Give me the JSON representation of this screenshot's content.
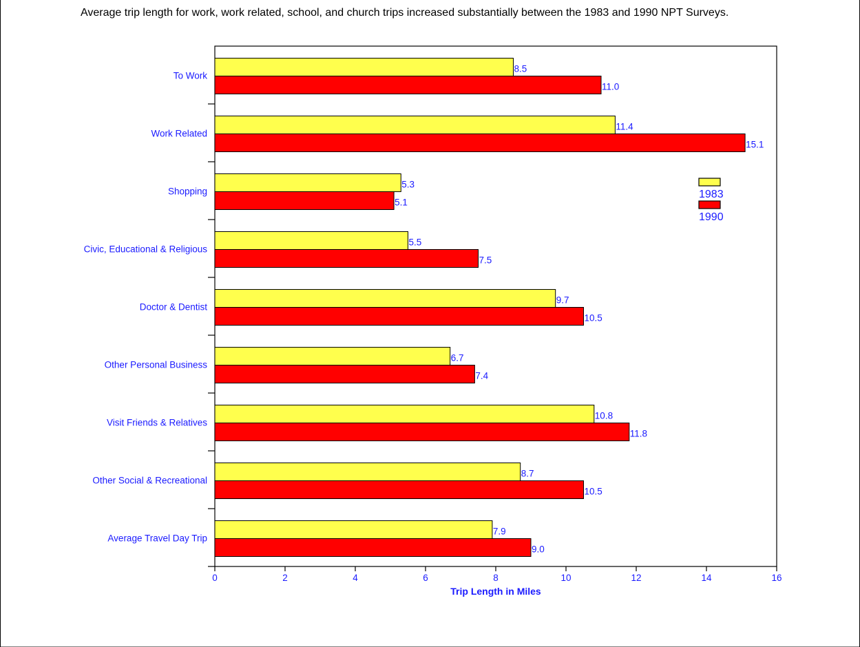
{
  "caption": "Average trip length for work, work related, school, and church trips increased substantially between the 1983 and 1990 NPT Surveys.",
  "colors": {
    "label_text": "#1a1aff",
    "bar_1983": "#ffff4d",
    "bar_1990": "#ff0000",
    "bar_stroke": "#000000",
    "axis": "#000000",
    "frame": "#000000"
  },
  "chart_data": {
    "type": "bar",
    "orientation": "horizontal",
    "categories": [
      "To Work",
      "Work Related",
      "Shopping",
      "Civic, Educational & Religious",
      "Doctor & Dentist",
      "Other Personal Business",
      "Visit Friends & Relatives",
      "Other Social & Recreational",
      "Average Travel Day Trip"
    ],
    "series": [
      {
        "name": "1983",
        "values": [
          8.5,
          11.4,
          5.3,
          5.5,
          9.7,
          6.7,
          10.8,
          8.7,
          7.9
        ],
        "labels": [
          "8.5",
          "11.4",
          "5.3",
          "5.5",
          "9.7",
          "6.7",
          "10.8",
          "8.7",
          "7.9"
        ]
      },
      {
        "name": "1990",
        "values": [
          11.0,
          15.1,
          5.1,
          7.5,
          10.5,
          7.4,
          11.8,
          10.5,
          9.0
        ],
        "labels": [
          "11.0",
          "15.1",
          "5.1",
          "7.5",
          "10.5",
          "7.4",
          "11.8",
          "10.5",
          "9.0"
        ]
      }
    ],
    "xlabel": "Trip Length in Miles",
    "xlim": [
      0,
      16
    ],
    "xticks": [
      "0",
      "2",
      "4",
      "6",
      "8",
      "10",
      "12",
      "14",
      "16"
    ],
    "grid": false,
    "legend_position": "right"
  }
}
